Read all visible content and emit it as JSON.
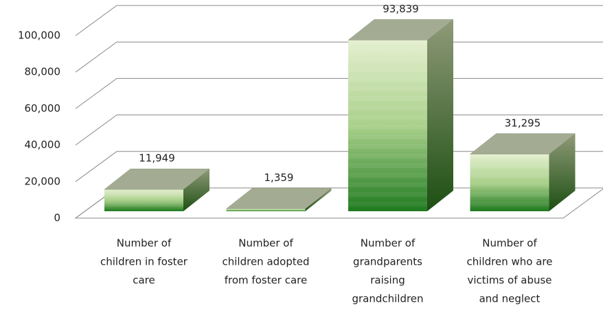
{
  "chart_data": {
    "type": "bar3d",
    "categories": [
      [
        "Number of",
        "children in foster",
        "care"
      ],
      [
        "Number of",
        "children adopted",
        "from foster care"
      ],
      [
        "Number of",
        "grandparents",
        "raising",
        "grandchildren"
      ],
      [
        "Number of",
        "children who are",
        "victims of abuse",
        "and neglect"
      ]
    ],
    "values": [
      11949,
      1359,
      93839,
      31295
    ],
    "value_labels": [
      "11,949",
      "1,359",
      "93,839",
      "31,295"
    ],
    "ylim": [
      0,
      100000
    ],
    "yticks": [
      0,
      {
        "value": 20000,
        "label": "20,000"
      },
      {
        "value": 40000,
        "label": "40,000"
      },
      {
        "value": 60000,
        "label": "60,000"
      },
      {
        "value": 80000,
        "label": "80,000"
      },
      {
        "value": 100000,
        "label": "100,000"
      }
    ],
    "grid": true,
    "color": "#2e8b2e"
  }
}
